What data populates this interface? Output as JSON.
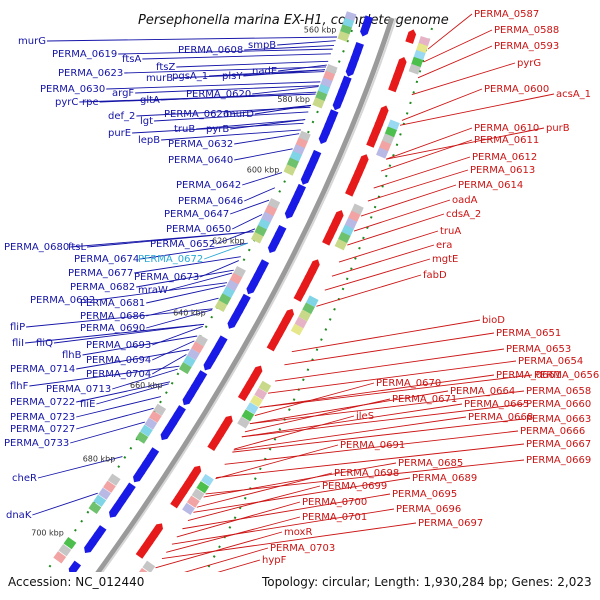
{
  "title": "Persephonella marina EX-H1, complete genome",
  "footer": {
    "accession": "Accession: NC_012440",
    "topology": "Topology: circular; Length: 1,930,284 bp; Genes: 2,023"
  },
  "ticks": [
    {
      "label": "560 kbp"
    },
    {
      "label": "580 kbp"
    },
    {
      "label": "600 kbp"
    },
    {
      "label": "620 kbp"
    },
    {
      "label": "640 kbp"
    },
    {
      "label": "660 kbp"
    },
    {
      "label": "680 kbp"
    },
    {
      "label": "700 kbp"
    }
  ],
  "left_labels": [
    {
      "text": "murG",
      "color": "#1414a8"
    },
    {
      "text": "PERMA_0619",
      "color": "#1414a8"
    },
    {
      "text": "ftsA",
      "color": "#1414a8"
    },
    {
      "text": "ftsZ",
      "color": "#1414a8"
    },
    {
      "text": "PERMA_0608",
      "color": "#1414a8"
    },
    {
      "text": "smpB",
      "color": "#1414a8"
    },
    {
      "text": "PERMA_0623",
      "color": "#1414a8"
    },
    {
      "text": "murB",
      "color": "#1414a8"
    },
    {
      "text": "pgsA_1",
      "color": "#1414a8"
    },
    {
      "text": "plsY",
      "color": "#1414a8"
    },
    {
      "text": "nadE",
      "color": "#1414a8"
    },
    {
      "text": "PERMA_0630",
      "color": "#1414a8"
    },
    {
      "text": "argF",
      "color": "#1414a8"
    },
    {
      "text": "PERMA_0620",
      "color": "#1414a8"
    },
    {
      "text": "pyrC",
      "color": "#1414a8"
    },
    {
      "text": "rpe",
      "color": "#1414a8"
    },
    {
      "text": "gltA",
      "color": "#1414a8"
    },
    {
      "text": "def_2",
      "color": "#1414a8"
    },
    {
      "text": "lgt",
      "color": "#1414a8"
    },
    {
      "text": "PERMA_0626",
      "color": "#1414a8"
    },
    {
      "text": "murD",
      "color": "#1414a8"
    },
    {
      "text": "purE",
      "color": "#1414a8"
    },
    {
      "text": "truB",
      "color": "#1414a8"
    },
    {
      "text": "pyrB",
      "color": "#1414a8"
    },
    {
      "text": "lepB",
      "color": "#1414a8"
    },
    {
      "text": "PERMA_0632",
      "color": "#1414a8"
    },
    {
      "text": "PERMA_0640",
      "color": "#1414a8"
    },
    {
      "text": "PERMA_0642",
      "color": "#1414a8"
    },
    {
      "text": "PERMA_0646",
      "color": "#1414a8"
    },
    {
      "text": "PERMA_0647",
      "color": "#1414a8"
    },
    {
      "text": "PERMA_0650",
      "color": "#1414a8"
    },
    {
      "text": "PERMA_0680",
      "color": "#1414a8"
    },
    {
      "text": "ftsL",
      "color": "#1414a8"
    },
    {
      "text": "PERMA_0652",
      "color": "#1414a8"
    },
    {
      "text": "PERMA_0674",
      "color": "#1414a8"
    },
    {
      "text": "PERMA_0672",
      "color": "#29a9d6"
    },
    {
      "text": "PERMA_0677",
      "color": "#1414a8"
    },
    {
      "text": "PERMA_0673",
      "color": "#1414a8"
    },
    {
      "text": "PERMA_0682",
      "color": "#1414a8"
    },
    {
      "text": "mraW",
      "color": "#1414a8"
    },
    {
      "text": "PERMA_0692",
      "color": "#1414a8"
    },
    {
      "text": "PERMA_0681",
      "color": "#1414a8"
    },
    {
      "text": "PERMA_0686",
      "color": "#1414a8"
    },
    {
      "text": "fliP",
      "color": "#1414a8"
    },
    {
      "text": "PERMA_0690",
      "color": "#1414a8"
    },
    {
      "text": "fliI",
      "color": "#1414a8"
    },
    {
      "text": "fliQ",
      "color": "#1414a8"
    },
    {
      "text": "PERMA_0693",
      "color": "#1414a8"
    },
    {
      "text": "flhB",
      "color": "#1414a8"
    },
    {
      "text": "PERMA_0694",
      "color": "#1414a8"
    },
    {
      "text": "PERMA_0714",
      "color": "#1414a8"
    },
    {
      "text": "PERMA_0704",
      "color": "#1414a8"
    },
    {
      "text": "flhF",
      "color": "#1414a8"
    },
    {
      "text": "PERMA_0713",
      "color": "#1414a8"
    },
    {
      "text": "PERMA_0722",
      "color": "#1414a8"
    },
    {
      "text": "fliE",
      "color": "#1414a8"
    },
    {
      "text": "PERMA_0723",
      "color": "#1414a8"
    },
    {
      "text": "PERMA_0727",
      "color": "#1414a8"
    },
    {
      "text": "PERMA_0733",
      "color": "#1414a8"
    },
    {
      "text": "cheR",
      "color": "#1414a8"
    },
    {
      "text": "dnaK",
      "color": "#1414a8"
    }
  ],
  "right_labels": [
    {
      "text": "PERMA_0587"
    },
    {
      "text": "PERMA_0588"
    },
    {
      "text": "PERMA_0593"
    },
    {
      "text": "pyrG"
    },
    {
      "text": "PERMA_0600"
    },
    {
      "text": "acsA_1"
    },
    {
      "text": "PERMA_0610"
    },
    {
      "text": "purB"
    },
    {
      "text": "PERMA_0611"
    },
    {
      "text": "PERMA_0612"
    },
    {
      "text": "PERMA_0613"
    },
    {
      "text": "PERMA_0614"
    },
    {
      "text": "oadA"
    },
    {
      "text": "cdsA_2"
    },
    {
      "text": "truA"
    },
    {
      "text": "era"
    },
    {
      "text": "mgtE"
    },
    {
      "text": "fabD"
    },
    {
      "text": "bioD"
    },
    {
      "text": "PERMA_0651"
    },
    {
      "text": "PERMA_0653"
    },
    {
      "text": "PERMA_0654"
    },
    {
      "text": "PERMA_0661"
    },
    {
      "text": "PERMA_0656"
    },
    {
      "text": "PERMA_0670"
    },
    {
      "text": "PERMA_0664"
    },
    {
      "text": "PERMA_0658"
    },
    {
      "text": "PERMA_0671"
    },
    {
      "text": "PERMA_0665"
    },
    {
      "text": "PERMA_0660"
    },
    {
      "text": "PERMA_0668"
    },
    {
      "text": "PERMA_0663"
    },
    {
      "text": "ileS"
    },
    {
      "text": "PERMA_0666"
    },
    {
      "text": "PERMA_0667"
    },
    {
      "text": "PERMA_0691"
    },
    {
      "text": "PERMA_0669"
    },
    {
      "text": "PERMA_0685"
    },
    {
      "text": "PERMA_0698"
    },
    {
      "text": "PERMA_0689"
    },
    {
      "text": "PERMA_0699"
    },
    {
      "text": "PERMA_0695"
    },
    {
      "text": "PERMA_0700"
    },
    {
      "text": "PERMA_0696"
    },
    {
      "text": "PERMA_0701"
    },
    {
      "text": "PERMA_0697"
    },
    {
      "text": "moxR"
    },
    {
      "text": "PERMA_0703"
    },
    {
      "text": "hypF"
    }
  ],
  "colors": {
    "forward_strand": "#1a1ae6",
    "reverse_strand": "#e61a1a",
    "backbone": "#9a9a9a",
    "gc_skew_dots": "#1f8a1f"
  }
}
